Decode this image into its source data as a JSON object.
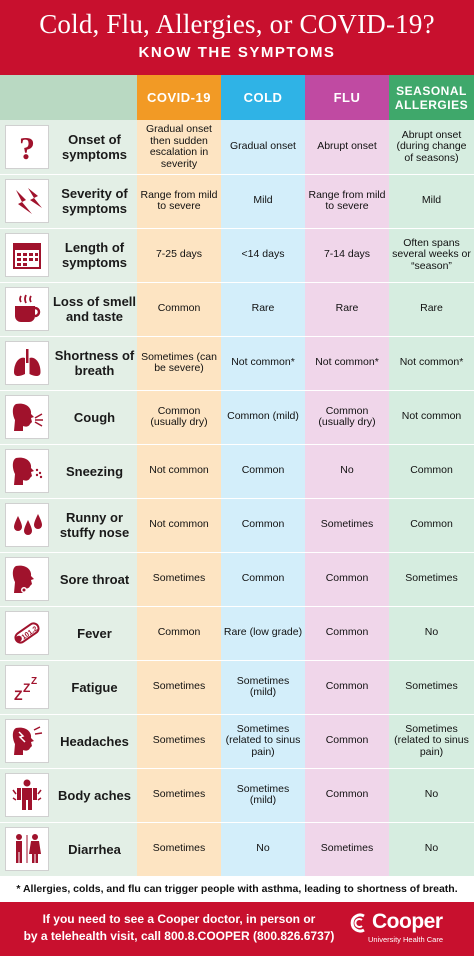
{
  "header": {
    "title": "Cold, Flu, Allergies, or COVID-19?",
    "subtitle": "KNOW THE SYMPTOMS"
  },
  "columns": [
    "COVID-19",
    "COLD",
    "FLU",
    "SEASONAL ALLERGIES"
  ],
  "colors": {
    "brand_red": "#c8102e",
    "covid": "#f29a25",
    "cold": "#2fb3e6",
    "flu": "#c04aa2",
    "allergies": "#3fa86b"
  },
  "rows": [
    {
      "symptom": "Onset of symptoms",
      "icon": "question-mark-icon",
      "covid": "Gradual onset then sudden escalation in severity",
      "cold": "Gradual onset",
      "flu": "Abrupt onset",
      "allergies": "Abrupt onset (during change of seasons)"
    },
    {
      "symptom": "Severity of symptoms",
      "icon": "lightning-bolt-icon",
      "covid": "Range from mild to severe",
      "cold": "Mild",
      "flu": "Range from mild to severe",
      "allergies": "Mild"
    },
    {
      "symptom": "Length of symptoms",
      "icon": "calendar-icon",
      "covid": "7-25 days",
      "cold": "<14 days",
      "flu": "7-14 days",
      "allergies": "Often spans several weeks or “season”"
    },
    {
      "symptom": "Loss of smell and taste",
      "icon": "coffee-cup-icon",
      "covid": "Common",
      "cold": "Rare",
      "flu": "Rare",
      "allergies": "Rare"
    },
    {
      "symptom": "Shortness of breath",
      "icon": "lungs-icon",
      "covid": "Sometimes (can be severe)",
      "cold": "Not common*",
      "flu": "Not common*",
      "allergies": "Not common*"
    },
    {
      "symptom": "Cough",
      "icon": "cough-head-icon",
      "covid": "Common (usually dry)",
      "cold": "Common (mild)",
      "flu": "Common (usually dry)",
      "allergies": "Not common"
    },
    {
      "symptom": "Sneezing",
      "icon": "sneeze-head-icon",
      "covid": "Not common",
      "cold": "Common",
      "flu": "No",
      "allergies": "Common"
    },
    {
      "symptom": "Runny or stuffy nose",
      "icon": "droplets-icon",
      "covid": "Not common",
      "cold": "Common",
      "flu": "Sometimes",
      "allergies": "Common"
    },
    {
      "symptom": "Sore throat",
      "icon": "sore-throat-icon",
      "covid": "Sometimes",
      "cold": "Common",
      "flu": "Common",
      "allergies": "Sometimes"
    },
    {
      "symptom": "Fever",
      "icon": "thermometer-icon",
      "covid": "Common",
      "cold": "Rare (low grade)",
      "flu": "Common",
      "allergies": "No"
    },
    {
      "symptom": "Fatigue",
      "icon": "sleep-zzz-icon",
      "covid": "Sometimes",
      "cold": "Sometimes (mild)",
      "flu": "Common",
      "allergies": "Sometimes"
    },
    {
      "symptom": "Headaches",
      "icon": "headache-icon",
      "covid": "Sometimes",
      "cold": "Sometimes (related to sinus pain)",
      "flu": "Common",
      "allergies": "Sometimes (related to sinus pain)"
    },
    {
      "symptom": "Body aches",
      "icon": "body-aches-icon",
      "covid": "Sometimes",
      "cold": "Sometimes (mild)",
      "flu": "Common",
      "allergies": "No"
    },
    {
      "symptom": "Diarrhea",
      "icon": "restroom-icon",
      "covid": "Sometimes",
      "cold": "No",
      "flu": "Sometimes",
      "allergies": "No"
    }
  ],
  "icon_labels": {
    "thermometer": "101.2"
  },
  "footnote": "* Allergies, colds, and flu can trigger people with asthma, leading to shortness of breath.",
  "footer": {
    "line1": "If you need to see a Cooper doctor, in person or",
    "line2": "by a telehealth visit, call 800.8.COOPER (800.826.6737)",
    "logo_name": "Cooper",
    "logo_sub": "University Health Care"
  }
}
